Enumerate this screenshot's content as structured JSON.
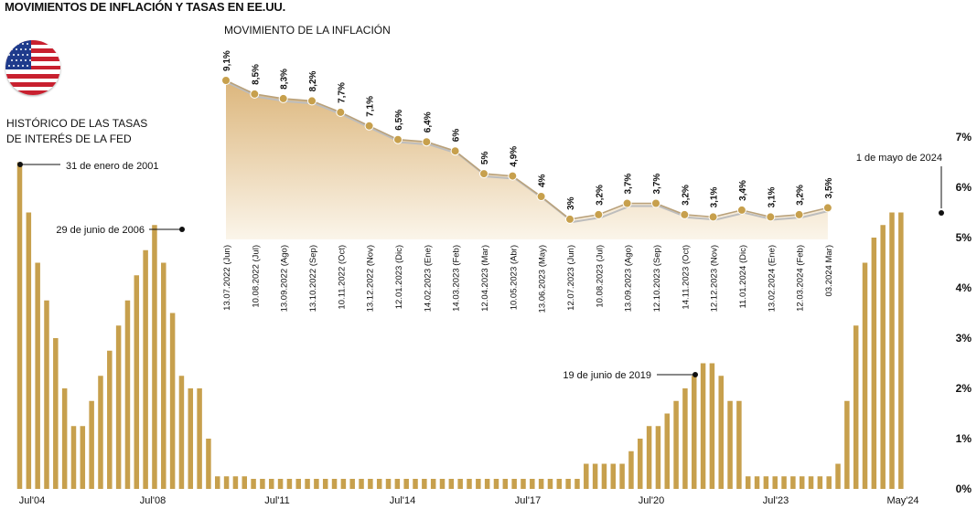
{
  "title": "MOVIMIENTOS DE INFLACIÓN Y TASAS EN EE.UU.",
  "colors": {
    "gold": "#c7a04d",
    "gold_fill_top": "#e3c38e",
    "gold_fill_bottom": "#fbf3e6",
    "gray_line": "#bdbdbd",
    "text": "#111111"
  },
  "icons": {
    "flag": "us-flag-icon"
  },
  "chart_data": [
    {
      "type": "bar",
      "title": "HISTÓRICO DE LAS TASAS DE INTERÉS DE LA FED",
      "title_lines": [
        "HISTÓRICO DE LAS TASAS",
        "DE INTERÉS DE LA FED"
      ],
      "y_tick_labels": [
        "0%",
        "1%",
        "2%",
        "3%",
        "4%",
        "5%",
        "6%",
        "7%"
      ],
      "ylim": [
        0,
        7
      ],
      "x_tick_labels": [
        "Jul'04",
        "Jul'08",
        "Jul'11",
        "Jul'14",
        "Jul'17",
        "Jul'20",
        "Jul'23",
        "May'24"
      ],
      "values": [
        6.5,
        5.5,
        4.5,
        3.75,
        3.0,
        2.0,
        1.25,
        1.25,
        1.75,
        2.25,
        2.75,
        3.25,
        3.75,
        4.25,
        4.75,
        5.25,
        4.5,
        3.5,
        2.25,
        2.0,
        2.0,
        1.0,
        0.25,
        0.25,
        0.25,
        0.25,
        0.2,
        0.2,
        0.2,
        0.2,
        0.2,
        0.2,
        0.2,
        0.2,
        0.2,
        0.2,
        0.2,
        0.2,
        0.2,
        0.2,
        0.2,
        0.2,
        0.2,
        0.2,
        0.2,
        0.2,
        0.2,
        0.2,
        0.2,
        0.2,
        0.2,
        0.2,
        0.2,
        0.2,
        0.2,
        0.2,
        0.2,
        0.2,
        0.2,
        0.2,
        0.2,
        0.2,
        0.2,
        0.5,
        0.5,
        0.5,
        0.5,
        0.5,
        0.75,
        1.0,
        1.25,
        1.25,
        1.5,
        1.75,
        2.0,
        2.25,
        2.5,
        2.5,
        2.25,
        1.75,
        1.75,
        0.25,
        0.25,
        0.25,
        0.25,
        0.25,
        0.25,
        0.25,
        0.25,
        0.25,
        0.25,
        0.5,
        1.75,
        3.25,
        4.5,
        5.0,
        5.25,
        5.5,
        5.5
      ],
      "annotations": [
        "31 de enero de 2001",
        "29 de junio de 2006",
        "19 de junio de 2019",
        "1 de mayo de 2024"
      ]
    },
    {
      "type": "line",
      "title": "MOVIMIENTO DE LA INFLACIÓN",
      "x": [
        "13.07.2022 (Jun)",
        "10.08.2022 (Jul)",
        "13.09.2022 (Ago)",
        "13.10.2022 (Sep)",
        "10.11.2022 (Oct)",
        "13.12.2022 (Nov)",
        "12.01.2023 (Dic)",
        "14.02.2023 (Ene)",
        "14.03.2023 (Feb)",
        "12.04.2023 (Mar)",
        "10.05.2023 (Abr)",
        "13.06.2023 (May)",
        "12.07.2023 (Jun)",
        "10.08.2023 (Jul)",
        "13.09.2023 (Ago)",
        "12.10.2023 (Sep)",
        "14.11.2023 (Oct)",
        "12.12.2023 (Nov)",
        "11.01.2024 (Dic)",
        "13.02.2024 (Ene)",
        "12.03.2024 (Feb)",
        "03.2024 Mar)"
      ],
      "values": [
        9.1,
        8.5,
        8.3,
        8.2,
        7.7,
        7.1,
        6.5,
        6.4,
        6,
        5,
        4.9,
        4,
        3,
        3.2,
        3.7,
        3.7,
        3.2,
        3.1,
        3.4,
        3.1,
        3.2,
        3.5
      ],
      "value_labels": [
        "9,1%",
        "8,5%",
        "8,3%",
        "8,2%",
        "7,7%",
        "7,1%",
        "6,5%",
        "6,4%",
        "6%",
        "5%",
        "4,9%",
        "4%",
        "3%",
        "3,2%",
        "3,7%",
        "3,7%",
        "3,2%",
        "3,1%",
        "3,4%",
        "3,1%",
        "3,2%",
        "3,5%"
      ]
    }
  ]
}
